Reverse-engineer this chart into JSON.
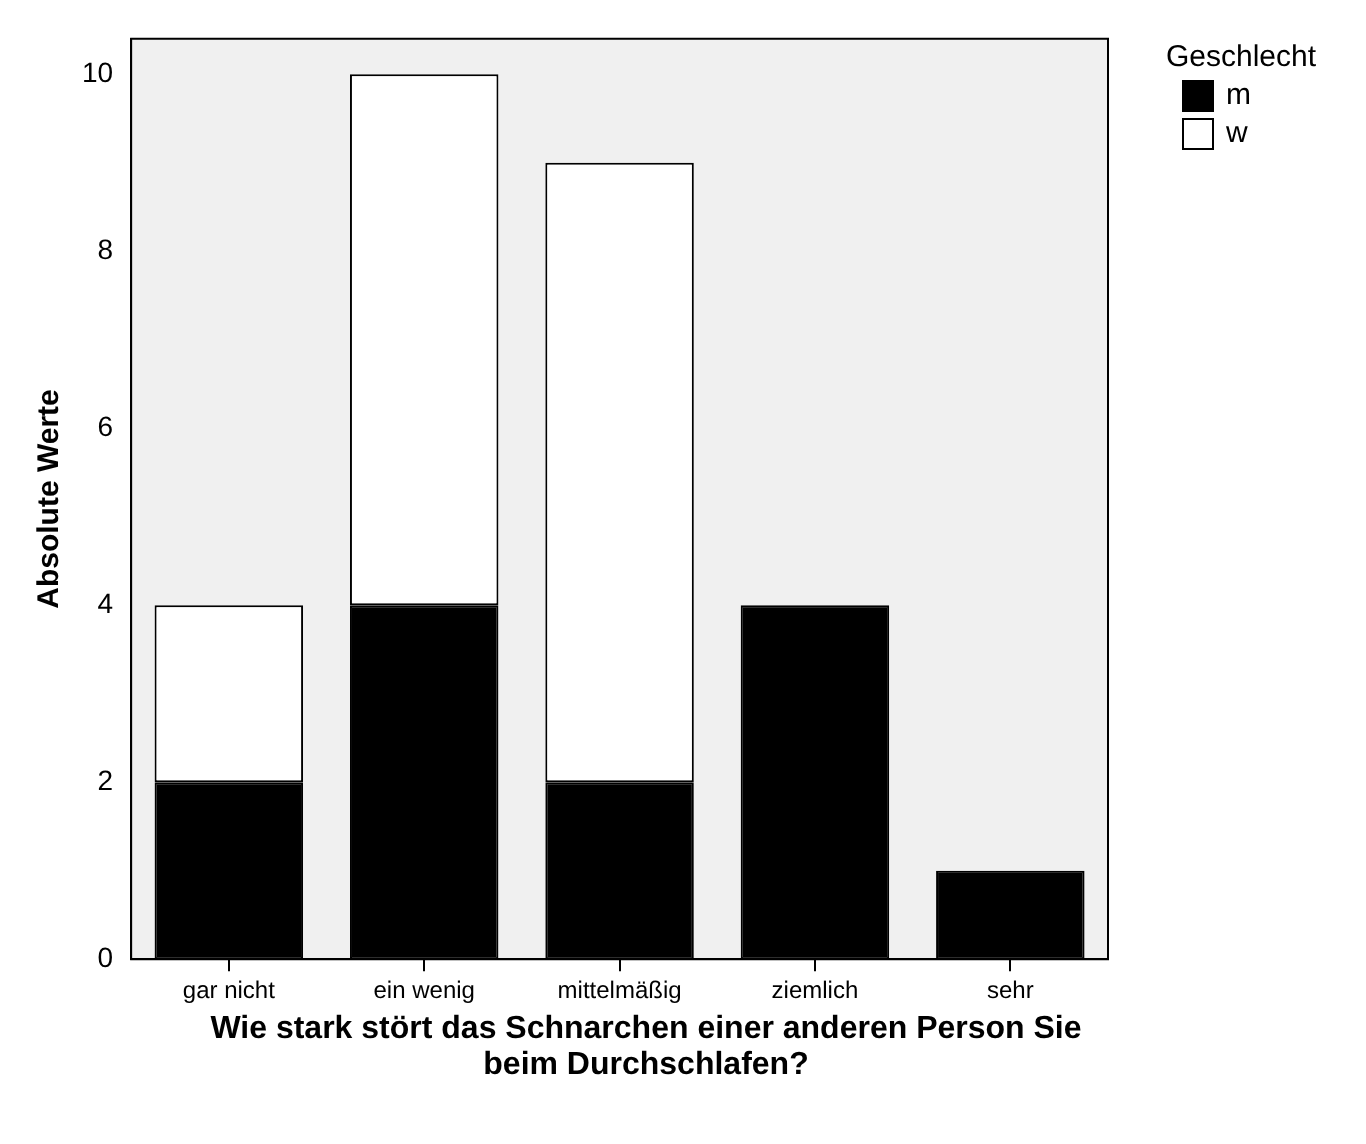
{
  "chart_data": {
    "type": "bar",
    "xlabel": "Wie stark stört das Schnarchen einer anderen Person Sie beim Durchschlafen?",
    "ylabel": "Absolute Werte",
    "legend_title": "Geschlecht",
    "categories": [
      "gar nicht",
      "ein wenig",
      "mittelmäßig",
      "ziemlich",
      "sehr"
    ],
    "series": [
      {
        "name": "m",
        "color": "#000000",
        "values": [
          2,
          4,
          2,
          4,
          1
        ]
      },
      {
        "name": "w",
        "color": "#ffffff",
        "values": [
          2,
          6,
          7,
          0,
          0
        ]
      }
    ],
    "stacked": true,
    "ylim": [
      0,
      10.4
    ],
    "yticks": [
      0,
      2,
      4,
      6,
      8,
      10
    ],
    "grid": false,
    "legend": "top right"
  }
}
